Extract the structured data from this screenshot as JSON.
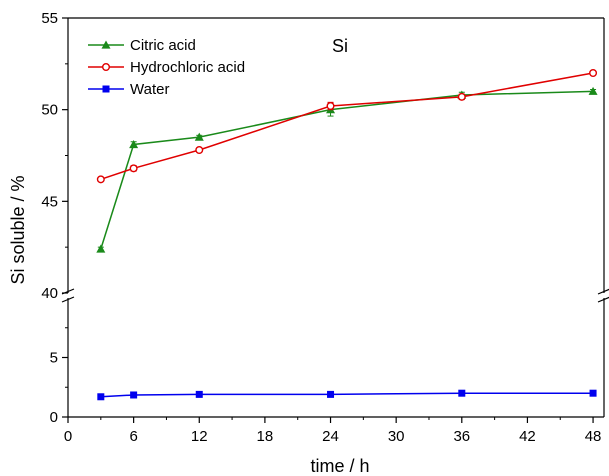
{
  "chart_data": {
    "type": "line",
    "title": "Si",
    "xlabel": "time / h",
    "ylabel": "Si soluble / %",
    "xlim": [
      0,
      49
    ],
    "x_ticks": [
      0,
      6,
      12,
      18,
      24,
      30,
      36,
      42,
      48
    ],
    "y_break": true,
    "ylim_upper": [
      40,
      55
    ],
    "ylim_lower": [
      0,
      10
    ],
    "y_ticks_upper": [
      40,
      45,
      50,
      55
    ],
    "y_ticks_lower": [
      0,
      5
    ],
    "legend_position": "top-left",
    "grid": false,
    "series": [
      {
        "name": "Citric acid",
        "color": "#1a8a1a",
        "marker": "triangle-filled",
        "x": [
          3,
          6,
          12,
          24,
          36,
          48
        ],
        "y": [
          42.4,
          48.1,
          48.5,
          50.0,
          50.8,
          51.0
        ],
        "err": [
          0.1,
          0.15,
          0.1,
          0.35,
          0.15,
          0.1
        ]
      },
      {
        "name": "Hydrochloric acid",
        "color": "#e00000",
        "marker": "circle-open",
        "x": [
          3,
          6,
          12,
          24,
          36,
          48
        ],
        "y": [
          46.2,
          46.8,
          47.8,
          50.2,
          50.7,
          52.0
        ],
        "err": [
          0.1,
          0.15,
          0.1,
          0.2,
          0.15,
          0.1
        ]
      },
      {
        "name": "Water",
        "color": "#0000ee",
        "marker": "square-filled",
        "x": [
          3,
          6,
          12,
          24,
          36,
          48
        ],
        "y": [
          1.7,
          1.85,
          1.9,
          1.9,
          2.0,
          2.0
        ],
        "err": [
          0.05,
          0.05,
          0.05,
          0.05,
          0.05,
          0.05
        ]
      }
    ]
  }
}
